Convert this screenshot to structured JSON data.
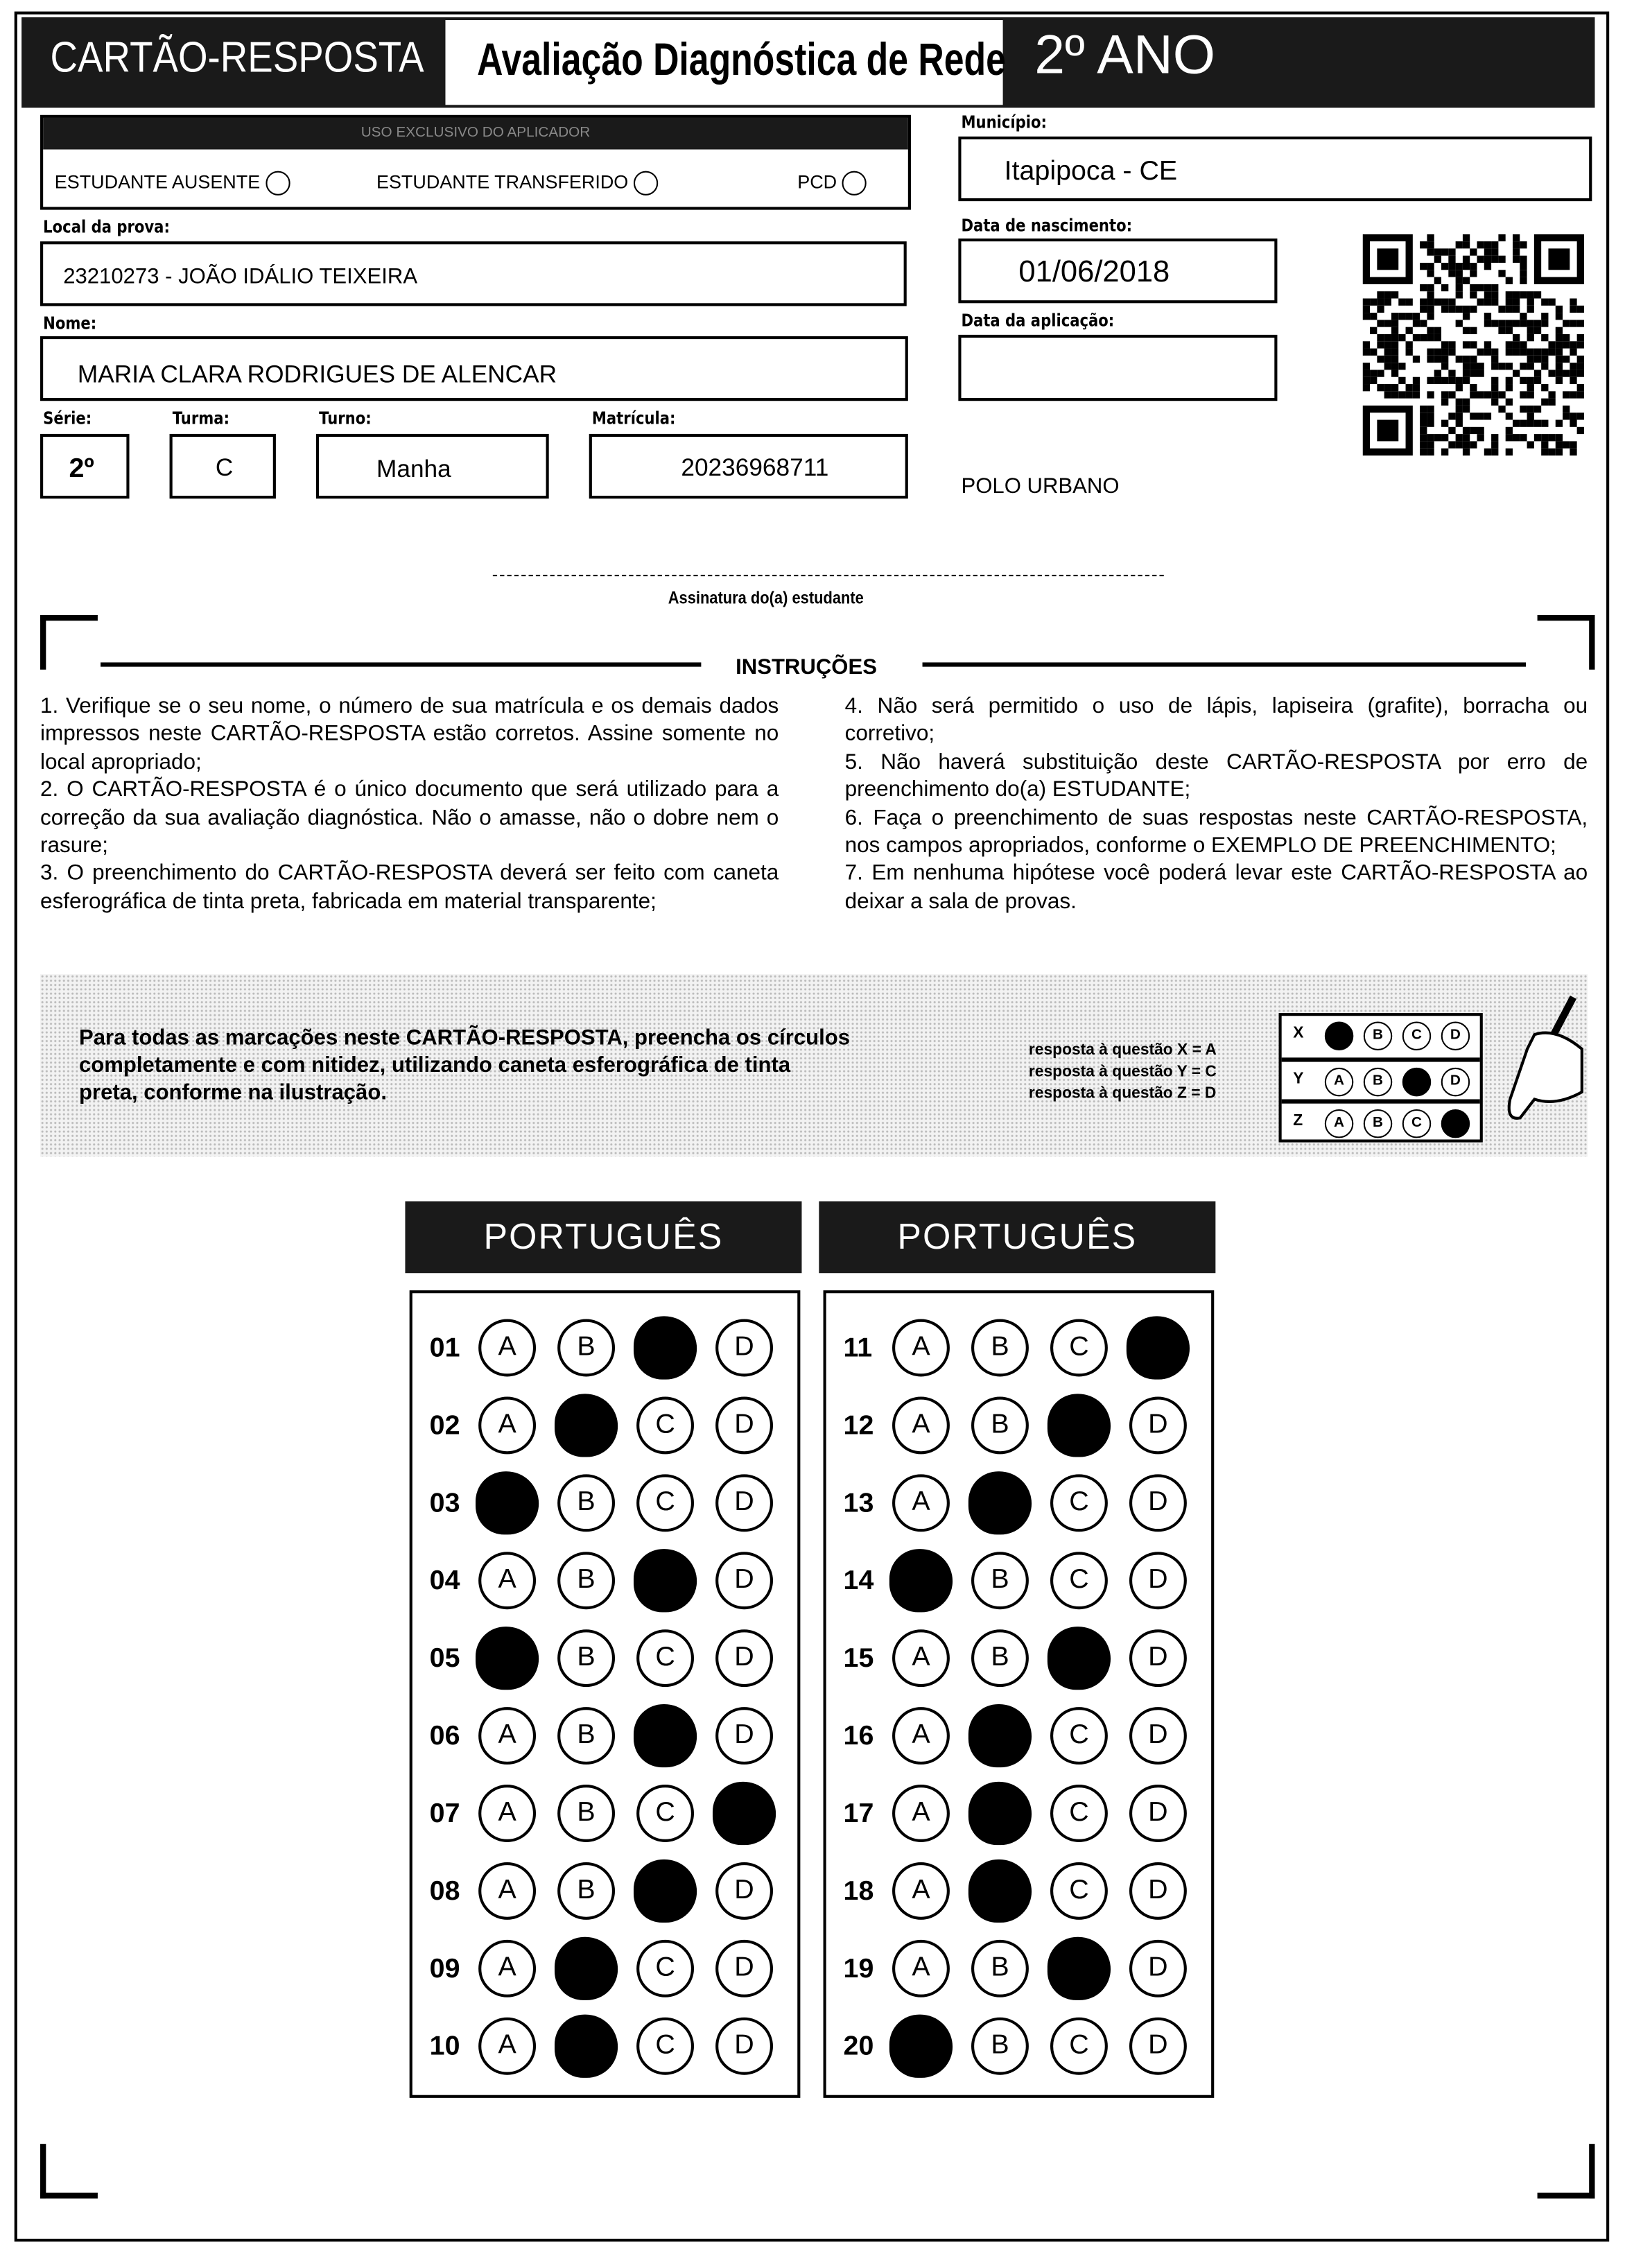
{
  "header": {
    "title": "CARTÃO-RESPOSTA",
    "subtitle": "Avaliação Diagnóstica de Rede",
    "grade": "2º ANO"
  },
  "applicator": {
    "title": "USO EXCLUSIVO DO APLICADOR",
    "absent": "ESTUDANTE AUSENTE",
    "transferred": "ESTUDANTE TRANSFERIDO",
    "pcd": "PCD"
  },
  "fields": {
    "municipio_label": "Município:",
    "municipio": "Itapipoca - CE",
    "local_label": "Local da prova:",
    "local": "23210273 - JOÃO IDÁLIO TEIXEIRA",
    "nascimento_label": "Data de nascimento:",
    "nascimento": "01/06/2018",
    "nome_label": "Nome:",
    "nome": "MARIA CLARA RODRIGUES DE ALENCAR",
    "aplicacao_label": "Data da aplicação:",
    "aplicacao": "",
    "serie_label": "Série:",
    "serie": "2º",
    "turma_label": "Turma:",
    "turma": "C",
    "turno_label": "Turno:",
    "turno": "Manha",
    "matricula_label": "Matrícula:",
    "matricula": "20236968711",
    "polo": "POLO URBANO"
  },
  "signature_label": "Assinatura do(a) estudante",
  "instructions": {
    "title": "INSTRUÇÕES",
    "left": [
      "1. Verifique se o seu nome, o número de sua matrícula e os demais dados impressos neste CARTÃO-RESPOSTA estão corretos. Assine somente no local apropriado;",
      "2. O CARTÃO-RESPOSTA é o único documento que será utilizado para a correção da sua avaliação diagnóstica. Não o amasse, não o dobre nem o rasure;",
      "3. O preenchimento do CARTÃO-RESPOSTA deverá ser feito com caneta esferográfica de tinta preta, fabricada em material transparente;"
    ],
    "right": [
      "4. Não será permitido o uso de lápis, lapiseira (grafite), borracha ou corretivo;",
      "5. Não haverá substituição deste CARTÃO-RESPOSTA por erro de preenchimento do(a) ESTUDANTE;",
      "6. Faça o preenchimento de suas respostas neste CARTÃO-RESPOSTA, nos campos apropriados, conforme o EXEMPLO DE PREENCHIMENTO;",
      "7. Em nenhuma hipótese você poderá levar este CARTÃO-RESPOSTA ao deixar a sala de provas."
    ]
  },
  "example": {
    "text": "Para todas as marcações neste CARTÃO-RESPOSTA, preencha os círculos completamente e com nitidez, utilizando caneta esferográfica de tinta preta, conforme na ilustração.",
    "lines": [
      "resposta à questão X = A",
      "resposta à questão Y = C",
      "resposta à questão Z = D"
    ],
    "rows": [
      {
        "label": "X",
        "filled": "A"
      },
      {
        "label": "Y",
        "filled": "C"
      },
      {
        "label": "Z",
        "filled": "D"
      }
    ]
  },
  "options": [
    "A",
    "B",
    "C",
    "D"
  ],
  "sections": [
    {
      "title": "PORTUGUÊS",
      "questions": [
        {
          "n": "01",
          "answer": "C"
        },
        {
          "n": "02",
          "answer": "B"
        },
        {
          "n": "03",
          "answer": "A"
        },
        {
          "n": "04",
          "answer": "C"
        },
        {
          "n": "05",
          "answer": "A"
        },
        {
          "n": "06",
          "answer": "C"
        },
        {
          "n": "07",
          "answer": "D"
        },
        {
          "n": "08",
          "answer": "C"
        },
        {
          "n": "09",
          "answer": "B"
        },
        {
          "n": "10",
          "answer": "B"
        }
      ]
    },
    {
      "title": "PORTUGUÊS",
      "questions": [
        {
          "n": "11",
          "answer": "D"
        },
        {
          "n": "12",
          "answer": "C"
        },
        {
          "n": "13",
          "answer": "B"
        },
        {
          "n": "14",
          "answer": "A"
        },
        {
          "n": "15",
          "answer": "C"
        },
        {
          "n": "16",
          "answer": "B"
        },
        {
          "n": "17",
          "answer": "B"
        },
        {
          "n": "18",
          "answer": "B"
        },
        {
          "n": "19",
          "answer": "C"
        },
        {
          "n": "20",
          "answer": "A"
        }
      ]
    }
  ]
}
